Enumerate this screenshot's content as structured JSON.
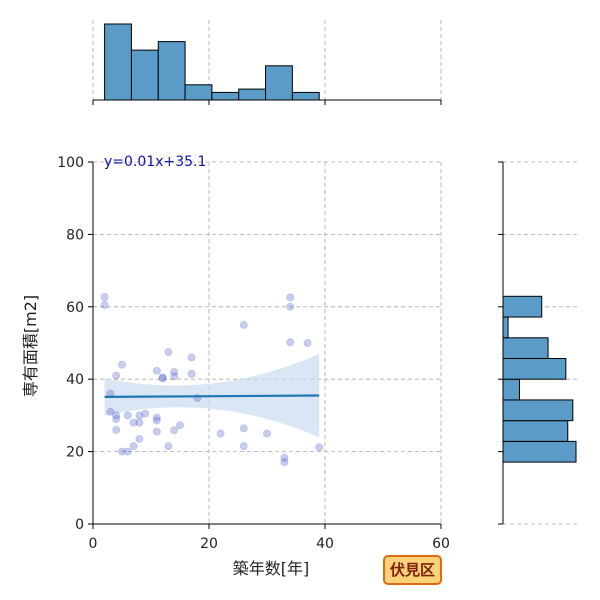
{
  "badge": {
    "label": "伏見区",
    "border_color": "#e06a12",
    "fill_color": "#ffd27a"
  },
  "chart_data": {
    "type": "scatter",
    "xlabel": "築年数[年]",
    "ylabel": "専有面積[m2]",
    "xlim": [
      0,
      60
    ],
    "ylim": [
      0,
      100
    ],
    "xticks": [
      0,
      20,
      40,
      60
    ],
    "yticks": [
      0,
      20,
      40,
      60,
      80,
      100
    ],
    "grid": true,
    "regression": {
      "label": "y=0.01x+35.1",
      "slope": 0.01,
      "intercept": 35.1,
      "x_range": [
        2,
        39
      ],
      "color": "#1f77b4",
      "band_color": "#c6d9ec"
    },
    "points": [
      [
        2,
        62.7
      ],
      [
        2,
        60.5
      ],
      [
        3,
        36
      ],
      [
        3,
        31
      ],
      [
        4,
        41
      ],
      [
        4,
        30
      ],
      [
        4,
        29
      ],
      [
        4,
        26
      ],
      [
        5,
        44
      ],
      [
        5,
        20
      ],
      [
        6,
        20
      ],
      [
        6,
        30
      ],
      [
        7,
        28
      ],
      [
        7,
        21.5
      ],
      [
        8,
        23.5
      ],
      [
        8,
        30
      ],
      [
        8,
        28
      ],
      [
        9,
        30.5
      ],
      [
        11,
        42.3
      ],
      [
        11,
        29.4
      ],
      [
        11,
        28.6
      ],
      [
        11,
        25.5
      ],
      [
        12,
        40.5
      ],
      [
        12,
        40.2
      ],
      [
        13,
        47.5
      ],
      [
        13,
        21.5
      ],
      [
        14,
        42
      ],
      [
        14,
        40.8
      ],
      [
        14,
        25.9
      ],
      [
        15,
        27.3
      ],
      [
        17,
        46
      ],
      [
        17,
        41.5
      ],
      [
        18,
        34.8
      ],
      [
        22,
        25
      ],
      [
        26,
        55
      ],
      [
        26,
        26.4
      ],
      [
        26,
        21.5
      ],
      [
        30,
        25
      ],
      [
        33,
        18.3
      ],
      [
        33,
        17.1
      ],
      [
        34,
        62.6
      ],
      [
        34,
        60
      ],
      [
        34,
        50.2
      ],
      [
        37,
        50
      ],
      [
        39,
        21.2
      ]
    ],
    "point_color": "#4a5acb",
    "top_histogram": {
      "bin_edges": [
        2,
        6.625,
        11.25,
        15.875,
        20.5,
        25.125,
        29.75,
        34.375,
        39
      ],
      "counts": [
        16,
        10.5,
        12.3,
        3.2,
        1.6,
        2.3,
        7.2,
        1.6
      ],
      "color": "#5b9bc8"
    },
    "right_histogram": {
      "bin_edges": [
        17.1,
        22.83,
        28.55,
        34.27,
        40.0,
        45.72,
        51.44,
        57.17,
        62.9
      ],
      "counts": [
        11.5,
        10.2,
        11,
        2.6,
        9.9,
        7.1,
        0.8,
        6.1
      ],
      "color": "#5b9bc8"
    }
  }
}
